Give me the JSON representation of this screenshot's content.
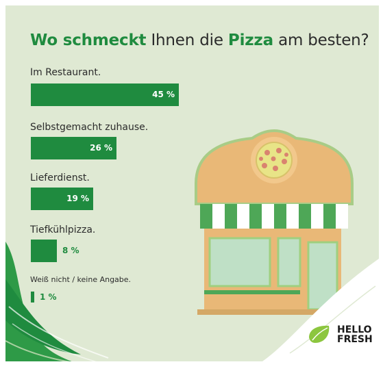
{
  "title": {
    "part1": "Wo schmeckt",
    "part2": " Ihnen die ",
    "part3": "Pizza",
    "part4": " am besten?"
  },
  "chart_data": {
    "type": "bar",
    "orientation": "horizontal",
    "categories": [
      "Im Restaurant.",
      "Selbstgemacht zuhause.",
      "Lieferdienst.",
      "Tiefkühlpizza.",
      "Weiß nicht / keine Angabe."
    ],
    "values": [
      45,
      26,
      19,
      8,
      1
    ],
    "value_labels": [
      "45 %",
      "26 %",
      "19 %",
      "8 %",
      "1 %"
    ],
    "unit": "%",
    "bar_color": "#1f8b3f",
    "title": "Wo schmeckt Ihnen die Pizza am besten?",
    "xlabel": "",
    "ylabel": "",
    "grid": false,
    "legend": "none"
  },
  "brand": {
    "line1": "HELLO",
    "line2": "FRESH",
    "icon": "lime-leaf-icon",
    "color": "#8cc63f"
  },
  "colors": {
    "background": "#dfe9d3",
    "accent": "#1f8b3f"
  }
}
